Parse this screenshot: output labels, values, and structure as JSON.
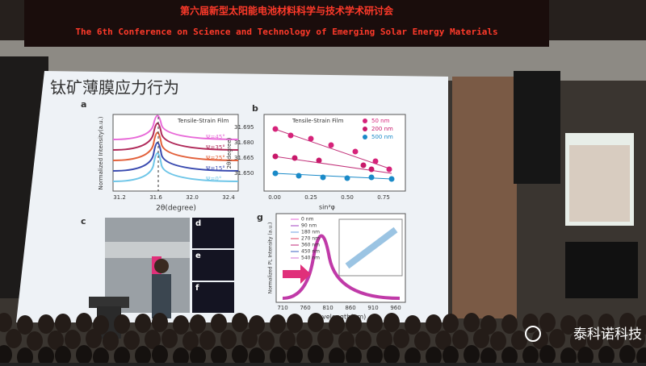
{
  "banner": {
    "title_cn": "第六届新型太阳能电池材料科学与技术学术研讨会",
    "title_en": "The 6th Conference on Science and Technology of Emerging Solar Energy Materials"
  },
  "slide": {
    "title": "钛矿薄膜应力行为",
    "panel_a": {
      "label": "a",
      "note": "Tensile-Strain Film",
      "legend": [
        "Ψ=45°",
        "Ψ=35°",
        "Ψ=25°",
        "Ψ=15°",
        "Ψ=0°"
      ],
      "xticks": [
        "31.2",
        "31.6",
        "32.0",
        "32.4"
      ],
      "xlabel": "2θ(degree)",
      "ylabel": "Normalized Intensity(a.u.)"
    },
    "panel_b": {
      "label": "b",
      "note": "Tensile-Strain Film",
      "legend": [
        "50 nm",
        "200 nm",
        "500 nm"
      ],
      "yticks": [
        "31.695",
        "31.680",
        "31.665",
        "31.650"
      ],
      "xticks": [
        "0.00",
        "0.25",
        "0.50",
        "0.75"
      ],
      "xlabel": "sin²φ",
      "ylabel": "2θ(degree)"
    },
    "panel_c": {
      "label": "c",
      "sub": [
        "d",
        "e",
        "f"
      ]
    },
    "panel_g": {
      "label": "g",
      "legend": [
        "0 nm",
        "90 nm",
        "180 nm",
        "270 nm",
        "360 nm",
        "450 nm",
        "540 nm"
      ],
      "xticks": [
        "710",
        "760",
        "810",
        "860",
        "910",
        "960"
      ],
      "xlabel": "Wavelength(nm)",
      "ylabel": "Normalized PL Intensity (a.u.)"
    }
  },
  "watermark": "泰科诺科技"
}
